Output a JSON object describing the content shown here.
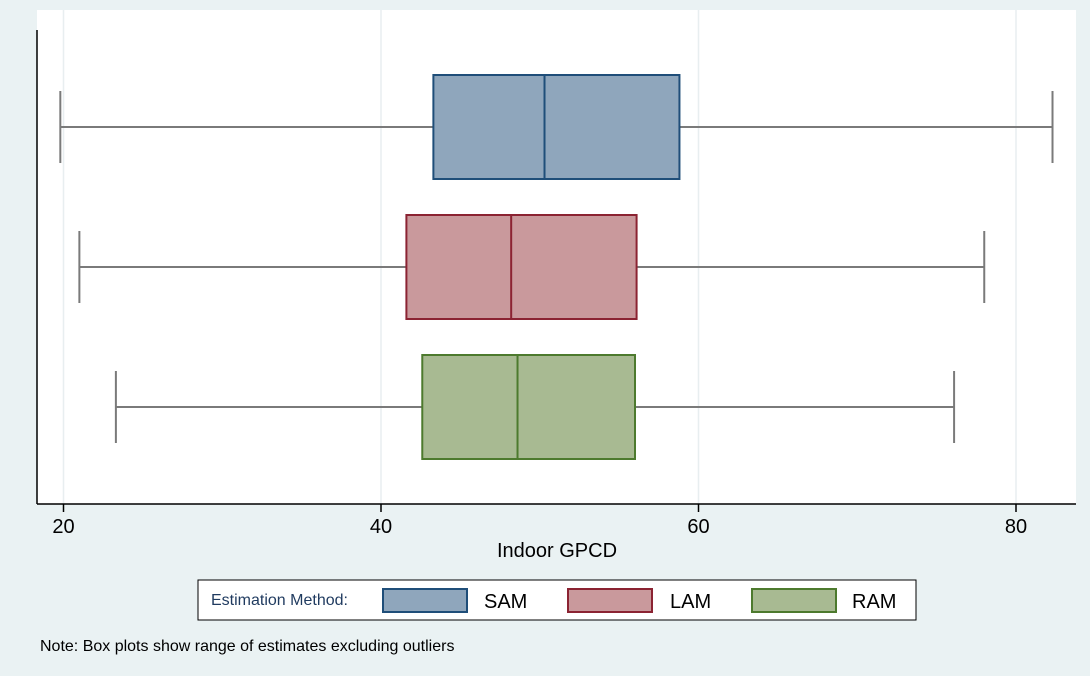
{
  "chart_data": {
    "type": "boxplot",
    "orientation": "horizontal",
    "xlabel": "Indoor GPCD",
    "xlim": [
      18.5,
      83.2
    ],
    "xticks": [
      20,
      40,
      60,
      80
    ],
    "grid": true,
    "legend_title": "Estimation Method:",
    "legend_position": "bottom",
    "series": [
      {
        "name": "SAM",
        "color": "#8fa6bc",
        "stroke": "#1f4e79",
        "whisker_low": 19.8,
        "q1": 43.3,
        "median": 50.3,
        "q3": 58.8,
        "whisker_high": 82.3
      },
      {
        "name": "LAM",
        "color": "#c9999c",
        "stroke": "#8b2332",
        "whisker_low": 21.0,
        "q1": 41.6,
        "median": 48.2,
        "q3": 56.1,
        "whisker_high": 78.0
      },
      {
        "name": "RAM",
        "color": "#a8ba92",
        "stroke": "#4d7a2e",
        "whisker_low": 23.3,
        "q1": 42.6,
        "median": 48.6,
        "q3": 56.0,
        "whisker_high": 76.1
      }
    ],
    "note": "Note: Box plots show range of estimates excluding outliers"
  },
  "colors": {
    "page_background": "#eaf2f3",
    "plot_background": "#ffffff",
    "whisker": "#7a7a7a",
    "grid": "#e8eef0"
  }
}
